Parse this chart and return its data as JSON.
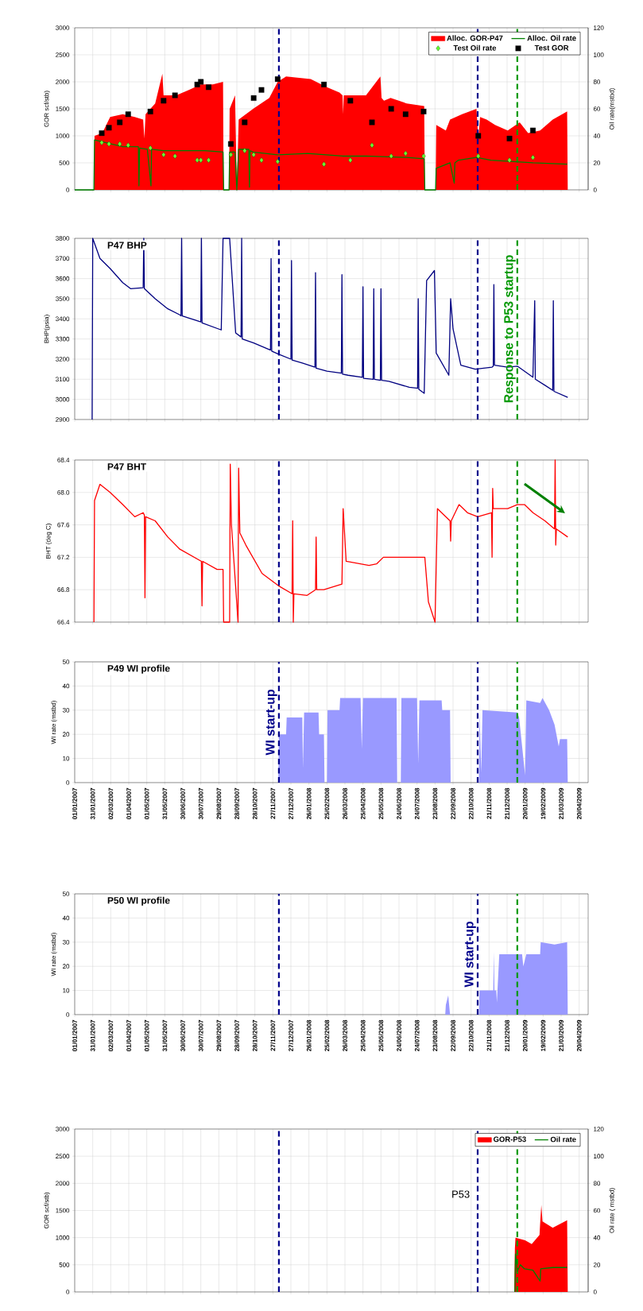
{
  "chart_data": [
    {
      "type": "area",
      "ylabel": "GOR scf/stb)",
      "y2label": "Oil rate(mstbd)",
      "xlim": [
        "2007-01-01",
        "2009-05-05"
      ],
      "xticks": [
        {
          "value": "2007-01-01",
          "label": null
        },
        {
          "value": "2007-01-31",
          "label": null
        },
        {
          "value": "2007-03-02",
          "label": null
        },
        {
          "value": "2007-04-01",
          "label": null
        },
        {
          "value": "2007-05-01",
          "label": null
        },
        {
          "value": "2007-05-31",
          "label": null
        },
        {
          "value": "2007-06-30",
          "label": null
        },
        {
          "value": "2007-07-30",
          "label": null
        },
        {
          "value": "2007-08-29",
          "label": null
        },
        {
          "value": "2007-09-28",
          "label": null
        },
        {
          "value": "2007-10-28",
          "label": null
        },
        {
          "value": "2007-11-27",
          "label": null
        },
        {
          "value": "2007-12-27",
          "label": null
        },
        {
          "value": "2008-01-26",
          "label": null
        },
        {
          "value": "2008-02-25",
          "label": null
        },
        {
          "value": "2008-03-26",
          "label": null
        },
        {
          "value": "2008-04-25",
          "label": null
        },
        {
          "value": "2008-05-25",
          "label": null
        },
        {
          "value": "2008-06-24",
          "label": null
        },
        {
          "value": "2008-07-24",
          "label": null
        },
        {
          "value": "2008-08-23",
          "label": null
        },
        {
          "value": "2008-09-22",
          "label": null
        },
        {
          "value": "2008-10-22",
          "label": null
        },
        {
          "value": "2008-11-21",
          "label": null
        },
        {
          "value": "2008-12-21",
          "label": null
        },
        {
          "value": "2009-01-20",
          "label": null
        },
        {
          "value": "2009-02-19",
          "label": null
        },
        {
          "value": "2009-03-21",
          "label": null
        },
        {
          "value": "2009-04-20",
          "label": null
        }
      ],
      "ylim": [
        0,
        3000
      ],
      "yticks": [
        0,
        500,
        1000,
        1500,
        2000,
        2500,
        3000
      ],
      "y2lim": [
        0,
        120
      ],
      "y2ticks": [
        0,
        20,
        40,
        60,
        80,
        100,
        120
      ],
      "grid": true,
      "legend": "top right",
      "tick_labels": "y",
      "series": [
        {
          "name": "Alloc. GOR-P47",
          "type": "area",
          "color": "#ff0000",
          "x": [
            "2007-01-01",
            "2007-02-02",
            "2007-02-03",
            "2007-02-16",
            "2007-03-01",
            "2007-03-22",
            "2007-04-11",
            "2007-04-25",
            "2007-04-27",
            "2007-04-29",
            "2007-05-15",
            "2007-05-27",
            "2007-05-29",
            "2007-06-19",
            "2007-07-10",
            "2007-07-30",
            "2007-08-19",
            "2007-09-05",
            "2007-09-06",
            "2007-09-15",
            "2007-09-16",
            "2007-09-25",
            "2007-09-28",
            "2007-10-01",
            "2007-10-25",
            "2007-11-21",
            "2007-12-05",
            "2007-12-19",
            "2008-01-29",
            "2008-02-25",
            "2008-03-17",
            "2008-03-22",
            "2008-03-23",
            "2008-03-24",
            "2008-04-30",
            "2008-05-24",
            "2008-05-26",
            "2008-05-30",
            "2008-06-10",
            "2008-07-07",
            "2008-08-05",
            "2008-08-06",
            "2008-08-24",
            "2008-08-25",
            "2008-09-10",
            "2008-09-17",
            "2008-10-07",
            "2008-10-31",
            "2008-11-03",
            "2008-11-06",
            "2008-11-17",
            "2008-12-01",
            "2008-12-22",
            "2009-01-11",
            "2009-01-25",
            "2009-02-14",
            "2009-03-07",
            "2009-03-31",
            "2009-04-01"
          ],
          "values": [
            0,
            0,
            1000,
            1050,
            1350,
            1400,
            1350,
            1300,
            950,
            1400,
            1600,
            2150,
            1750,
            1750,
            1850,
            1950,
            1950,
            2000,
            0,
            0,
            1500,
            1750,
            0,
            1300,
            1500,
            1700,
            2000,
            2100,
            2050,
            1900,
            1800,
            1750,
            1400,
            1750,
            1750,
            2100,
            1700,
            1650,
            1700,
            1600,
            1550,
            0,
            0,
            1200,
            1100,
            1300,
            1400,
            1500,
            950,
            1350,
            1300,
            1200,
            1100,
            1250,
            1050,
            1100,
            1300,
            1450,
            0
          ]
        },
        {
          "name": "Alloc. Oil rate",
          "type": "line",
          "axis": "y2",
          "color": "#008000",
          "x": [
            "2007-01-01",
            "2007-02-02",
            "2007-02-03",
            "2007-02-21",
            "2007-03-22",
            "2007-04-17",
            "2007-04-18",
            "2007-04-19",
            "2007-05-02",
            "2007-05-08",
            "2007-05-09",
            "2007-05-29",
            "2007-07-03",
            "2007-08-06",
            "2007-09-05",
            "2007-09-06",
            "2007-09-15",
            "2007-09-16",
            "2007-09-25",
            "2007-09-28",
            "2007-10-01",
            "2007-10-18",
            "2007-10-19",
            "2007-10-20",
            "2007-10-25",
            "2007-12-05",
            "2008-01-24",
            "2008-03-22",
            "2008-04-30",
            "2008-07-07",
            "2008-08-05",
            "2008-08-06",
            "2008-08-24",
            "2008-08-25",
            "2008-09-17",
            "2008-09-24",
            "2008-09-25",
            "2008-10-01",
            "2008-10-31",
            "2008-11-24",
            "2008-12-29",
            "2009-02-02",
            "2009-03-31"
          ],
          "values": [
            0,
            0,
            37,
            35,
            32,
            32,
            3,
            31,
            30,
            3,
            30,
            29,
            29,
            29,
            28,
            0,
            0,
            28,
            28,
            0,
            30,
            30,
            2,
            29,
            28,
            26,
            27,
            25,
            25,
            24,
            23,
            0,
            0,
            16,
            20,
            5,
            20,
            22,
            24,
            22,
            21,
            20,
            19
          ]
        },
        {
          "name": "Test Oil rate",
          "type": "scatter",
          "axis": "y2",
          "marker": "diamond",
          "color": "#66ff33",
          "x": [
            "2007-02-15",
            "2007-02-27",
            "2007-03-17",
            "2007-03-31",
            "2007-05-07",
            "2007-05-29",
            "2007-06-17",
            "2007-07-24",
            "2007-07-30",
            "2007-08-12",
            "2007-09-18",
            "2007-10-11",
            "2007-10-26",
            "2007-11-08",
            "2007-12-05",
            "2008-02-20",
            "2008-04-04",
            "2008-05-10",
            "2008-06-11",
            "2008-07-05",
            "2008-08-04",
            "2008-11-03",
            "2008-12-25",
            "2009-02-02"
          ],
          "values": [
            35,
            34,
            34,
            33,
            31,
            26,
            25,
            22,
            22,
            22,
            26,
            29,
            26,
            22,
            21,
            19,
            22,
            33,
            25,
            27,
            25,
            25,
            22,
            24
          ]
        },
        {
          "name": "Test GOR",
          "type": "scatter",
          "marker": "square",
          "color": "#000000",
          "x": [
            "2007-02-15",
            "2007-02-27",
            "2007-03-17",
            "2007-03-31",
            "2007-05-07",
            "2007-05-29",
            "2007-06-17",
            "2007-07-24",
            "2007-07-30",
            "2007-08-12",
            "2007-09-18",
            "2007-10-11",
            "2007-10-26",
            "2007-11-08",
            "2007-12-05",
            "2008-02-20",
            "2008-04-04",
            "2008-05-10",
            "2008-06-11",
            "2008-07-05",
            "2008-08-04",
            "2008-11-03",
            "2008-12-25",
            "2009-02-02"
          ],
          "values": [
            1050,
            1150,
            1250,
            1400,
            1450,
            1650,
            1750,
            1950,
            2000,
            1900,
            850,
            1250,
            1700,
            1850,
            2050,
            1950,
            1650,
            1250,
            1500,
            1400,
            1450,
            1000,
            950,
            1100
          ]
        }
      ],
      "ref_lines": [
        {
          "axis": "x",
          "value": "2007-12-07",
          "color": "#00008b",
          "line_style": "dashed"
        },
        {
          "axis": "x",
          "value": "2008-11-02",
          "color": "#00008b",
          "line_style": "dashed"
        },
        {
          "axis": "x",
          "value": "2009-01-07",
          "color": "#009900",
          "line_style": "dashed"
        }
      ]
    },
    {
      "type": "line",
      "title": "P47 BHP",
      "ylabel": "BHP(psia)",
      "xlim": [
        "2007-01-01",
        "2009-05-05"
      ],
      "xticks": [
        {
          "value": "2007-01-01",
          "label": null
        },
        {
          "value": "2007-01-31",
          "label": null
        },
        {
          "value": "2007-03-02",
          "label": null
        },
        {
          "value": "2007-04-01",
          "label": null
        },
        {
          "value": "2007-05-01",
          "label": null
        },
        {
          "value": "2007-05-31",
          "label": null
        },
        {
          "value": "2007-06-30",
          "label": null
        },
        {
          "value": "2007-07-30",
          "label": null
        },
        {
          "value": "2007-08-29",
          "label": null
        },
        {
          "value": "2007-09-28",
          "label": null
        },
        {
          "value": "2007-10-28",
          "label": null
        },
        {
          "value": "2007-11-27",
          "label": null
        },
        {
          "value": "2007-12-27",
          "label": null
        },
        {
          "value": "2008-01-26",
          "label": null
        },
        {
          "value": "2008-02-25",
          "label": null
        },
        {
          "value": "2008-03-26",
          "label": null
        },
        {
          "value": "2008-04-25",
          "label": null
        },
        {
          "value": "2008-05-25",
          "label": null
        },
        {
          "value": "2008-06-24",
          "label": null
        },
        {
          "value": "2008-07-24",
          "label": null
        },
        {
          "value": "2008-08-23",
          "label": null
        },
        {
          "value": "2008-09-22",
          "label": null
        },
        {
          "value": "2008-10-22",
          "label": null
        },
        {
          "value": "2008-11-21",
          "label": null
        },
        {
          "value": "2008-12-21",
          "label": null
        },
        {
          "value": "2009-01-20",
          "label": null
        },
        {
          "value": "2009-02-19",
          "label": null
        },
        {
          "value": "2009-03-21",
          "label": null
        },
        {
          "value": "2009-04-20",
          "label": null
        }
      ],
      "ylim": [
        2900,
        3800
      ],
      "yticks": [
        2900,
        3000,
        3100,
        3200,
        3300,
        3400,
        3500,
        3600,
        3700,
        3800
      ],
      "grid": true,
      "tick_labels": "y",
      "series": [
        {
          "color": "#000080",
          "x": [
            "2007-01-30",
            "2007-01-31",
            "2007-02-12",
            "2007-03-01",
            "2007-03-22",
            "2007-04-04",
            "2007-04-25",
            "2007-04-26",
            "2007-04-27",
            "2007-05-15",
            "2007-06-05",
            "2007-06-25",
            "2007-06-27",
            "2007-06-28",
            "2007-06-29",
            "2007-07-30",
            "2007-07-31",
            "2007-08-01",
            "2007-09-02",
            "2007-09-05",
            "2007-09-16",
            "2007-09-26",
            "2007-10-05",
            "2007-10-06",
            "2007-10-07",
            "2007-10-26",
            "2007-11-23",
            "2007-11-24",
            "2007-11-25",
            "2007-12-06",
            "2007-12-27",
            "2007-12-28",
            "2007-12-29",
            "2008-01-16",
            "2008-02-05",
            "2008-02-06",
            "2008-02-07",
            "2008-02-25",
            "2008-03-20",
            "2008-03-21",
            "2008-03-22",
            "2008-03-31",
            "2008-04-24",
            "2008-04-25",
            "2008-04-26",
            "2008-05-12",
            "2008-05-13",
            "2008-05-14",
            "2008-05-24",
            "2008-05-25",
            "2008-05-26",
            "2008-06-07",
            "2008-07-11",
            "2008-07-25",
            "2008-07-26",
            "2008-07-27",
            "2008-08-05",
            "2008-08-09",
            "2008-08-22",
            "2008-08-25",
            "2008-09-15",
            "2008-09-18",
            "2008-09-22",
            "2008-10-05",
            "2008-10-29",
            "2008-11-26",
            "2008-11-28",
            "2008-11-29",
            "2008-11-30",
            "2008-12-22",
            "2009-01-07",
            "2009-02-02",
            "2009-02-05",
            "2009-02-06",
            "2009-02-22",
            "2009-03-07",
            "2009-03-08",
            "2009-03-09",
            "2009-04-01"
          ],
          "values": [
            2900,
            3800,
            3700,
            3650,
            3580,
            3550,
            3555,
            3800,
            3550,
            3500,
            3450,
            3420,
            3415,
            3800,
            3415,
            3385,
            3800,
            3380,
            3345,
            3800,
            3800,
            3330,
            3310,
            3800,
            3300,
            3280,
            3245,
            3700,
            3240,
            3225,
            3200,
            3690,
            3195,
            3180,
            3160,
            3630,
            3155,
            3140,
            3130,
            3620,
            3125,
            3120,
            3110,
            3560,
            3105,
            3100,
            3550,
            3100,
            3095,
            3550,
            3095,
            3090,
            3060,
            3055,
            3500,
            3050,
            3030,
            3590,
            3640,
            3230,
            3120,
            3500,
            3350,
            3170,
            3150,
            3160,
            3165,
            3570,
            3170,
            3160,
            3165,
            3110,
            3490,
            3100,
            3070,
            3045,
            3490,
            3040,
            3010
          ]
        }
      ],
      "ref_lines": [
        {
          "axis": "x",
          "value": "2007-12-07",
          "color": "#00008b",
          "line_style": "dashed"
        },
        {
          "axis": "x",
          "value": "2008-11-02",
          "color": "#00008b",
          "line_style": "dashed"
        },
        {
          "axis": "x",
          "value": "2009-01-07",
          "color": "#009900",
          "line_style": "dashed",
          "label": "Response to P53 startup"
        }
      ]
    },
    {
      "type": "line",
      "title": "P47 BHT",
      "ylabel": "BHT (deg C)",
      "xlim": [
        "2007-01-01",
        "2009-05-05"
      ],
      "xticks": [
        {
          "value": "2007-01-01",
          "label": null
        },
        {
          "value": "2007-01-31",
          "label": null
        },
        {
          "value": "2007-03-02",
          "label": null
        },
        {
          "value": "2007-04-01",
          "label": null
        },
        {
          "value": "2007-05-01",
          "label": null
        },
        {
          "value": "2007-05-31",
          "label": null
        },
        {
          "value": "2007-06-30",
          "label": null
        },
        {
          "value": "2007-07-30",
          "label": null
        },
        {
          "value": "2007-08-29",
          "label": null
        },
        {
          "value": "2007-09-28",
          "label": null
        },
        {
          "value": "2007-10-28",
          "label": null
        },
        {
          "value": "2007-11-27",
          "label": null
        },
        {
          "value": "2007-12-27",
          "label": null
        },
        {
          "value": "2008-01-26",
          "label": null
        },
        {
          "value": "2008-02-25",
          "label": null
        },
        {
          "value": "2008-03-26",
          "label": null
        },
        {
          "value": "2008-04-25",
          "label": null
        },
        {
          "value": "2008-05-25",
          "label": null
        },
        {
          "value": "2008-06-24",
          "label": null
        },
        {
          "value": "2008-07-24",
          "label": null
        },
        {
          "value": "2008-08-23",
          "label": null
        },
        {
          "value": "2008-09-22",
          "label": null
        },
        {
          "value": "2008-10-22",
          "label": null
        },
        {
          "value": "2008-11-21",
          "label": null
        },
        {
          "value": "2008-12-21",
          "label": null
        },
        {
          "value": "2009-01-20",
          "label": null
        },
        {
          "value": "2009-02-19",
          "label": null
        },
        {
          "value": "2009-03-21",
          "label": null
        },
        {
          "value": "2009-04-20",
          "label": null
        }
      ],
      "ylim": [
        66.4,
        68.4
      ],
      "yticks": [
        66.4,
        66.8,
        67.2,
        67.6,
        {
          "value": 68,
          "label": "68.0"
        },
        68.4
      ],
      "grid": true,
      "tick_labels": "y",
      "series": [
        {
          "color": "#ff0000",
          "x": [
            "2007-02-02",
            "2007-02-03",
            "2007-02-12",
            "2007-03-01",
            "2007-03-22",
            "2007-04-11",
            "2007-04-25",
            "2007-04-27",
            "2007-04-28",
            "2007-04-29",
            "2007-05-15",
            "2007-06-05",
            "2007-06-25",
            "2007-07-31",
            "2007-08-01",
            "2007-08-02",
            "2007-08-26",
            "2007-09-05",
            "2007-09-06",
            "2007-09-16",
            "2007-09-17",
            "2007-09-19",
            "2007-09-30",
            "2007-10-01",
            "2007-10-03",
            "2007-10-13",
            "2007-11-09",
            "2007-12-06",
            "2007-12-29",
            "2007-12-30",
            "2007-12-31",
            "2008-01-01",
            "2008-01-23",
            "2008-02-06",
            "2008-02-07",
            "2008-02-08",
            "2008-02-20",
            "2008-03-21",
            "2008-03-23",
            "2008-03-28",
            "2008-05-05",
            "2008-05-18",
            "2008-05-29",
            "2008-07-11",
            "2008-08-06",
            "2008-08-12",
            "2008-08-23",
            "2008-08-27",
            "2008-09-17",
            "2008-09-18",
            "2008-09-19",
            "2008-10-02",
            "2008-10-16",
            "2008-11-02",
            "2008-11-25",
            "2008-11-26",
            "2008-11-27",
            "2008-11-28",
            "2008-12-22",
            "2009-01-07",
            "2009-01-19",
            "2009-02-02",
            "2009-02-22",
            "2009-03-10",
            "2009-03-11",
            "2009-03-12",
            "2009-03-13",
            "2009-04-01"
          ],
          "values": [
            66.4,
            67.9,
            68.1,
            68,
            67.85,
            67.7,
            67.75,
            67.72,
            66.7,
            67.7,
            67.65,
            67.45,
            67.3,
            67.15,
            66.6,
            67.15,
            67.05,
            67.05,
            66.4,
            66.4,
            68.35,
            67.6,
            66.4,
            68.3,
            67.5,
            67.35,
            67,
            66.85,
            66.75,
            67.65,
            66.4,
            66.75,
            66.73,
            66.8,
            67.45,
            66.8,
            66.8,
            66.87,
            67.8,
            67.15,
            67.1,
            67.12,
            67.2,
            67.2,
            67.2,
            66.65,
            66.4,
            67.8,
            67.65,
            67.4,
            67.65,
            67.85,
            67.75,
            67.7,
            67.75,
            67.2,
            68.05,
            67.8,
            67.8,
            67.85,
            67.85,
            67.75,
            67.65,
            67.55,
            68.4,
            67.35,
            67.55,
            67.45
          ]
        }
      ],
      "ref_lines": [
        {
          "axis": "x",
          "value": "2007-12-07",
          "color": "#00008b",
          "line_style": "dashed"
        },
        {
          "axis": "x",
          "value": "2008-11-02",
          "color": "#00008b",
          "line_style": "dashed"
        },
        {
          "axis": "x",
          "value": "2009-01-07",
          "color": "#009900",
          "line_style": "dashed"
        }
      ]
    },
    {
      "type": "area",
      "title": "P49 WI profile",
      "ylabel": "WI rate (mstbd)",
      "xlim": [
        "2007-01-01",
        "2009-05-05"
      ],
      "xticks": [
        {
          "value": "2007-01-01",
          "label": "01/01/2007"
        },
        {
          "value": "2007-01-31",
          "label": "31/01/2007"
        },
        {
          "value": "2007-03-02",
          "label": "02/03/2007"
        },
        {
          "value": "2007-04-01",
          "label": "01/04/2007"
        },
        {
          "value": "2007-05-01",
          "label": "01/05/2007"
        },
        {
          "value": "2007-05-31",
          "label": "31/05/2007"
        },
        {
          "value": "2007-06-30",
          "label": "30/06/2007"
        },
        {
          "value": "2007-07-30",
          "label": "30/07/2007"
        },
        {
          "value": "2007-08-29",
          "label": "29/08/2007"
        },
        {
          "value": "2007-09-28",
          "label": "28/09/2007"
        },
        {
          "value": "2007-10-28",
          "label": "28/10/2007"
        },
        {
          "value": "2007-11-27",
          "label": "27/11/2007"
        },
        {
          "value": "2007-12-27",
          "label": "27/12/2007"
        },
        {
          "value": "2008-01-26",
          "label": "26/01/2008"
        },
        {
          "value": "2008-02-25",
          "label": "25/02/2008"
        },
        {
          "value": "2008-03-26",
          "label": "26/03/2008"
        },
        {
          "value": "2008-04-25",
          "label": "25/04/2008"
        },
        {
          "value": "2008-05-25",
          "label": "25/05/2008"
        },
        {
          "value": "2008-06-24",
          "label": "24/06/2008"
        },
        {
          "value": "2008-07-24",
          "label": "24/07/2008"
        },
        {
          "value": "2008-08-23",
          "label": "23/08/2008"
        },
        {
          "value": "2008-09-22",
          "label": "22/09/2008"
        },
        {
          "value": "2008-10-22",
          "label": "22/10/2008"
        },
        {
          "value": "2008-11-21",
          "label": "21/11/2008"
        },
        {
          "value": "2008-12-21",
          "label": "21/12/2008"
        },
        {
          "value": "2009-01-20",
          "label": "20/01/2009"
        },
        {
          "value": "2009-02-19",
          "label": "19/02/2009"
        },
        {
          "value": "2009-03-21",
          "label": "21/03/2009"
        },
        {
          "value": "2009-04-20",
          "label": "20/04/2009"
        }
      ],
      "ylim": [
        0,
        50
      ],
      "yticks": [
        0,
        10,
        20,
        30,
        40,
        50
      ],
      "grid": true,
      "series": [
        {
          "color": "#9999ff",
          "x": [
            "2007-12-06",
            "2007-12-07",
            "2007-12-19",
            "2007-12-20",
            "2008-01-15",
            "2008-01-16",
            "2008-01-18",
            "2008-02-11",
            "2008-02-12",
            "2008-02-20",
            "2008-02-21",
            "2008-02-25",
            "2008-02-26",
            "2008-03-17",
            "2008-03-18",
            "2008-04-21",
            "2008-04-23",
            "2008-04-25",
            "2008-06-20",
            "2008-06-21",
            "2008-06-27",
            "2008-06-28",
            "2008-07-24",
            "2008-07-26",
            "2008-07-28",
            "2008-09-03",
            "2008-09-04",
            "2008-09-17",
            "2008-09-18",
            "2008-11-04",
            "2008-11-05",
            "2008-11-08",
            "2008-11-10",
            "2009-01-07",
            "2009-01-10",
            "2009-01-20",
            "2009-01-22",
            "2009-02-14",
            "2009-02-18",
            "2009-03-01",
            "2009-03-10",
            "2009-03-17",
            "2009-03-19",
            "2009-03-31",
            "2009-04-01"
          ],
          "values": [
            0,
            20,
            20,
            27,
            27,
            6,
            29,
            29,
            20,
            20,
            0,
            0,
            30,
            30,
            35,
            35,
            14,
            35,
            35,
            0,
            0,
            35,
            35,
            8,
            34,
            34,
            30,
            30,
            0,
            0,
            30,
            4,
            30,
            29,
            27,
            3,
            34,
            33,
            35,
            30,
            24,
            15,
            18,
            18,
            0
          ]
        }
      ],
      "ref_lines": [
        {
          "axis": "x",
          "value": "2007-12-07",
          "color": "#00008b",
          "line_style": "dashed",
          "label": "WI start-up"
        },
        {
          "axis": "x",
          "value": "2008-11-02",
          "color": "#00008b",
          "line_style": "dashed"
        },
        {
          "axis": "x",
          "value": "2009-01-07",
          "color": "#009900",
          "line_style": "dashed"
        }
      ]
    },
    {
      "type": "area",
      "title": "P50 WI profile",
      "ylabel": "WI rate (mstbd)",
      "xlim": [
        "2007-01-01",
        "2009-05-05"
      ],
      "xticks": [
        {
          "value": "2007-01-01",
          "label": "01/01/2007"
        },
        {
          "value": "2007-01-31",
          "label": "31/01/2007"
        },
        {
          "value": "2007-03-02",
          "label": "02/03/2007"
        },
        {
          "value": "2007-04-01",
          "label": "01/04/2007"
        },
        {
          "value": "2007-05-01",
          "label": "01/05/2007"
        },
        {
          "value": "2007-05-31",
          "label": "31/05/2007"
        },
        {
          "value": "2007-06-30",
          "label": "30/06/2007"
        },
        {
          "value": "2007-07-30",
          "label": "30/07/2007"
        },
        {
          "value": "2007-08-29",
          "label": "29/08/2007"
        },
        {
          "value": "2007-09-28",
          "label": "28/09/2007"
        },
        {
          "value": "2007-10-28",
          "label": "28/10/2007"
        },
        {
          "value": "2007-11-27",
          "label": "27/11/2007"
        },
        {
          "value": "2007-12-27",
          "label": "27/12/2007"
        },
        {
          "value": "2008-01-26",
          "label": "26/01/2008"
        },
        {
          "value": "2008-02-25",
          "label": "25/02/2008"
        },
        {
          "value": "2008-03-26",
          "label": "26/03/2008"
        },
        {
          "value": "2008-04-25",
          "label": "25/04/2008"
        },
        {
          "value": "2008-05-25",
          "label": "25/05/2008"
        },
        {
          "value": "2008-06-24",
          "label": "24/06/2008"
        },
        {
          "value": "2008-07-24",
          "label": "24/07/2008"
        },
        {
          "value": "2008-08-23",
          "label": "23/08/2008"
        },
        {
          "value": "2008-09-22",
          "label": "22/09/2008"
        },
        {
          "value": "2008-10-22",
          "label": "22/10/2008"
        },
        {
          "value": "2008-11-21",
          "label": "21/11/2008"
        },
        {
          "value": "2008-12-21",
          "label": "21/12/2008"
        },
        {
          "value": "2009-01-20",
          "label": "20/01/2009"
        },
        {
          "value": "2009-02-19",
          "label": "19/02/2009"
        },
        {
          "value": "2009-03-21",
          "label": "21/03/2009"
        },
        {
          "value": "2009-04-20",
          "label": "20/04/2009"
        }
      ],
      "ylim": [
        0,
        50
      ],
      "yticks": [
        0,
        10,
        20,
        30,
        40,
        50
      ],
      "grid": true,
      "series": [
        {
          "color": "#9999ff",
          "x": [
            "2008-09-09",
            "2008-09-10",
            "2008-09-14",
            "2008-09-17",
            "2008-11-04",
            "2008-11-05",
            "2008-11-28",
            "2008-11-29",
            "2008-11-30",
            "2008-12-03",
            "2008-12-04",
            "2008-12-08",
            "2009-01-15",
            "2009-01-17",
            "2009-01-22",
            "2009-02-14",
            "2009-02-15",
            "2009-03-10",
            "2009-03-31",
            "2009-04-01"
          ],
          "values": [
            0,
            4,
            8,
            0,
            0,
            10,
            10,
            26,
            10,
            10,
            5,
            25,
            25,
            20,
            25,
            25,
            30,
            29,
            30,
            0
          ]
        }
      ],
      "ref_lines": [
        {
          "axis": "x",
          "value": "2007-12-07",
          "color": "#00008b",
          "line_style": "dashed"
        },
        {
          "axis": "x",
          "value": "2008-11-02",
          "color": "#00008b",
          "line_style": "dashed",
          "label": "WI start-up"
        },
        {
          "axis": "x",
          "value": "2009-01-07",
          "color": "#009900",
          "line_style": "dashed"
        }
      ]
    },
    {
      "type": "area",
      "ylabel": "GOR scf/stb)",
      "y2label": "Oil rate ( mstbd)",
      "xlim": [
        "2007-01-01",
        "2009-05-05"
      ],
      "xticks": [
        {
          "value": "2007-01-01",
          "label": null
        },
        {
          "value": "2007-01-31",
          "label": null
        },
        {
          "value": "2007-03-02",
          "label": null
        },
        {
          "value": "2007-04-01",
          "label": null
        },
        {
          "value": "2007-05-01",
          "label": null
        },
        {
          "value": "2007-05-31",
          "label": null
        },
        {
          "value": "2007-06-30",
          "label": null
        },
        {
          "value": "2007-07-30",
          "label": null
        },
        {
          "value": "2007-08-29",
          "label": null
        },
        {
          "value": "2007-09-28",
          "label": null
        },
        {
          "value": "2007-10-28",
          "label": null
        },
        {
          "value": "2007-11-27",
          "label": null
        },
        {
          "value": "2007-12-27",
          "label": null
        },
        {
          "value": "2008-01-26",
          "label": null
        },
        {
          "value": "2008-02-25",
          "label": null
        },
        {
          "value": "2008-03-26",
          "label": null
        },
        {
          "value": "2008-04-25",
          "label": null
        },
        {
          "value": "2008-05-25",
          "label": null
        },
        {
          "value": "2008-06-24",
          "label": null
        },
        {
          "value": "2008-07-24",
          "label": null
        },
        {
          "value": "2008-08-23",
          "label": null
        },
        {
          "value": "2008-09-22",
          "label": null
        },
        {
          "value": "2008-10-22",
          "label": null
        },
        {
          "value": "2008-11-21",
          "label": null
        },
        {
          "value": "2008-12-21",
          "label": null
        },
        {
          "value": "2009-01-20",
          "label": null
        },
        {
          "value": "2009-02-19",
          "label": null
        },
        {
          "value": "2009-03-21",
          "label": null
        },
        {
          "value": "2009-04-20",
          "label": null
        }
      ],
      "ylim": [
        0,
        3000
      ],
      "yticks": [
        0,
        500,
        1000,
        1500,
        2000,
        2500,
        3000
      ],
      "y2lim": [
        0,
        120
      ],
      "y2ticks": [
        0,
        20,
        40,
        60,
        80,
        100,
        120
      ],
      "grid": true,
      "legend": "top right",
      "tick_labels": "y",
      "series": [
        {
          "name": "GOR-P53",
          "type": "area",
          "color": "#ff0000",
          "x": [
            "2009-01-02",
            "2009-01-03",
            "2009-01-04",
            "2009-01-20",
            "2009-01-31",
            "2009-02-13",
            "2009-02-14",
            "2009-02-16",
            "2009-02-18",
            "2009-03-07",
            "2009-03-31",
            "2009-04-01"
          ],
          "values": [
            0,
            800,
            1000,
            950,
            880,
            1050,
            1250,
            1600,
            1300,
            1180,
            1320,
            0
          ]
        },
        {
          "name": "Oil rate",
          "type": "line",
          "axis": "y2",
          "color": "#008000",
          "x": [
            "2009-01-03",
            "2009-01-04",
            "2009-01-07",
            "2009-01-12",
            "2009-01-19",
            "2009-02-02",
            "2009-02-14",
            "2009-02-15",
            "2009-03-07",
            "2009-03-31"
          ],
          "values": [
            0,
            28,
            15,
            20,
            17,
            16,
            8,
            17,
            18,
            18
          ]
        }
      ],
      "annotations": [
        "P53"
      ],
      "ref_lines": [
        {
          "axis": "x",
          "value": "2007-12-07",
          "color": "#00008b",
          "line_style": "dashed"
        },
        {
          "axis": "x",
          "value": "2008-11-02",
          "color": "#00008b",
          "line_style": "dashed"
        },
        {
          "axis": "x",
          "value": "2009-01-07",
          "color": "#009900",
          "line_style": "dashed"
        }
      ]
    }
  ]
}
